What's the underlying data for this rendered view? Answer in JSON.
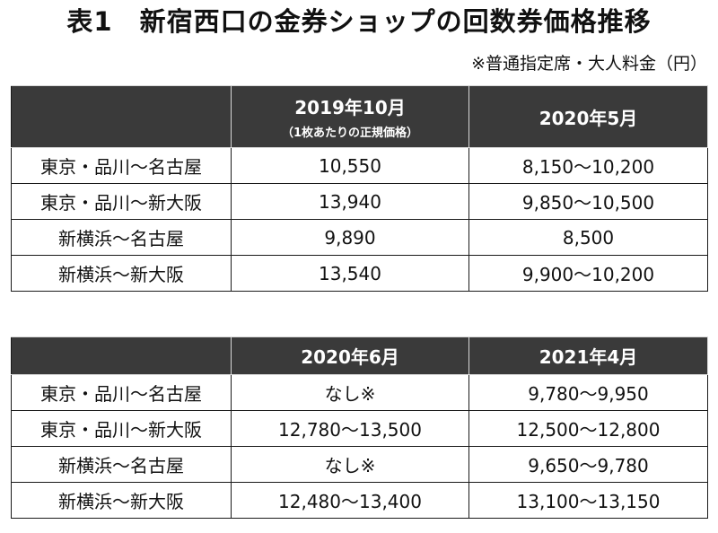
{
  "title": "表1　新宿西口の金券ショップの回数券価格推移",
  "note": "※普通指定席・大人料金（円）",
  "table1": {
    "headers": [
      {
        "main": "2019年10月",
        "sub": "（1枚あたりの正規価格）"
      },
      {
        "main": "2020年5月"
      }
    ],
    "rows": [
      {
        "route": "東京・品川〜名古屋",
        "a": "10,550",
        "b": "8,150〜10,200"
      },
      {
        "route": "東京・品川〜新大阪",
        "a": "13,940",
        "b": "9,850〜10,500"
      },
      {
        "route": "新横浜〜名古屋",
        "a": "9,890",
        "b": "8,500"
      },
      {
        "route": "新横浜〜新大阪",
        "a": "13,540",
        "b": "9,900〜10,200"
      }
    ]
  },
  "table2": {
    "headers": [
      {
        "main": "2020年6月"
      },
      {
        "main": "2021年4月"
      }
    ],
    "rows": [
      {
        "route": "東京・品川〜名古屋",
        "a": "なし※",
        "b": "9,780〜9,950"
      },
      {
        "route": "東京・品川〜新大阪",
        "a": "12,780〜13,500",
        "b": "12,500〜12,800"
      },
      {
        "route": "新横浜〜名古屋",
        "a": "なし※",
        "b": "9,650〜9,780"
      },
      {
        "route": "新横浜〜新大阪",
        "a": "12,480〜13,400",
        "b": "13,100〜13,150"
      }
    ]
  }
}
